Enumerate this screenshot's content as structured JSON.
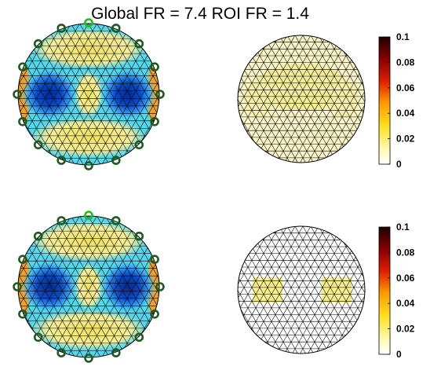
{
  "chart_data": {
    "title": "Global FR = 7.4 ROI FR = 1.4",
    "type": "heatmap",
    "panels": [
      {
        "row": 1,
        "col": 1,
        "kind": "conductivity-map",
        "colormap": "jet",
        "mesh": "triangular",
        "electrodes": 16,
        "highlight_electrode": 1
      },
      {
        "row": 1,
        "col": 2,
        "kind": "sensitivity-map",
        "colormap": "hot-reversed",
        "mesh": "triangular"
      },
      {
        "row": 2,
        "col": 1,
        "kind": "conductivity-map",
        "colormap": "jet",
        "mesh": "triangular",
        "electrodes": 16,
        "highlight_electrode": 1
      },
      {
        "row": 2,
        "col": 2,
        "kind": "sensitivity-map",
        "colormap": "hot-reversed",
        "mesh": "triangular"
      }
    ],
    "colorbars": [
      {
        "clim": [
          0,
          0.1
        ],
        "ticks": [
          "0",
          "0.02",
          "0.04",
          "0.06",
          "0.08",
          "0.1"
        ]
      },
      {
        "clim": [
          0,
          0.1
        ],
        "ticks": [
          "0",
          "0.02",
          "0.04",
          "0.06",
          "0.08",
          "0.1"
        ]
      }
    ],
    "colors": {
      "electrode": "#1f5a1f",
      "electrode_highlight": "#22bb22",
      "mesh": "#000000"
    }
  }
}
